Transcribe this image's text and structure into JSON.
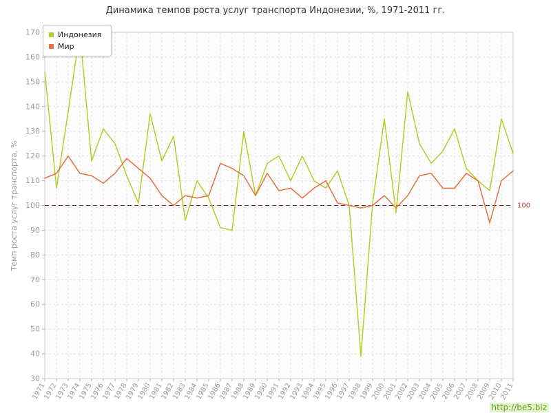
{
  "watermark": "http://be5.biz",
  "chart_data": {
    "type": "line",
    "title": "Динамика темпов роста услуг транспорта Индонезии, %, 1971-2011 гг.",
    "ylabel": "Темп роста услуг транспорта, %",
    "xlabel": "",
    "x": [
      1971,
      1972,
      1973,
      1974,
      1975,
      1976,
      1977,
      1978,
      1979,
      1980,
      1981,
      1982,
      1983,
      1984,
      1985,
      1986,
      1987,
      1988,
      1989,
      1990,
      1991,
      1992,
      1993,
      1994,
      1995,
      1996,
      1997,
      1998,
      1999,
      2000,
      2001,
      2002,
      2003,
      2004,
      2005,
      2006,
      2007,
      2008,
      2009,
      2010,
      2011
    ],
    "series": [
      {
        "name": "Индонезия",
        "color": "#b6cd2a",
        "values": [
          154,
          107,
          138,
          170,
          118,
          131,
          125,
          112,
          101,
          137,
          118,
          128,
          94,
          110,
          103,
          91,
          90,
          130,
          104,
          117,
          120,
          110,
          120,
          110,
          107,
          114,
          100,
          39,
          101,
          135,
          97,
          146,
          125,
          117,
          122,
          131,
          115,
          110,
          106,
          135,
          121
        ]
      },
      {
        "name": "Мир",
        "color": "#e07140",
        "values": [
          111,
          113,
          120,
          113,
          112,
          109,
          113,
          119,
          115,
          111,
          104,
          100,
          104,
          103,
          104,
          117,
          115,
          112,
          104,
          113,
          106,
          107,
          103,
          107,
          110,
          101,
          100,
          99,
          100,
          104,
          99,
          104,
          112,
          113,
          107,
          107,
          113,
          110,
          93,
          110,
          114
        ]
      }
    ],
    "ylim": [
      30,
      170
    ],
    "ytick_step": 10,
    "grid": true,
    "legend_position": "top-left",
    "reference_line": 100,
    "reference_label": "100",
    "colors": {
      "plot_bg": "#fcfcfc",
      "grid": "#e2e2e2",
      "axis": "#c8c8c8",
      "tick": "#b0b0b0",
      "tick_text": "#999999",
      "reference": "#8b2020",
      "reference_label": "#cc3333",
      "ylabel_text": "#999999"
    }
  }
}
